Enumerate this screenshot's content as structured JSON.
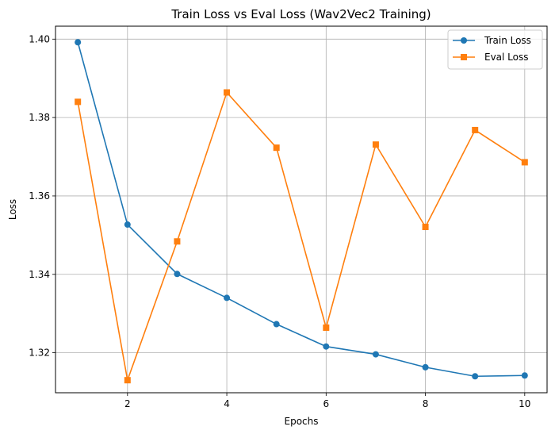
{
  "chart_data": {
    "type": "line",
    "title": "Train Loss vs Eval Loss (Wav2Vec2 Training)",
    "xlabel": "Epochs",
    "ylabel": "Loss",
    "x": [
      1,
      2,
      3,
      4,
      5,
      6,
      7,
      8,
      9,
      10
    ],
    "xticks": [
      2,
      4,
      6,
      8,
      10
    ],
    "xtick_labels": [
      "2",
      "4",
      "6",
      "8",
      "10"
    ],
    "yticks": [
      1.32,
      1.34,
      1.36,
      1.38,
      1.4
    ],
    "ytick_labels": [
      "1.32",
      "1.34",
      "1.36",
      "1.38",
      "1.40"
    ],
    "xlim": [
      0.55,
      10.45
    ],
    "ylim": [
      1.3098,
      1.4033
    ],
    "grid": true,
    "legend": "top-right",
    "series": [
      {
        "name": "Train Loss",
        "color": "#1f77b4",
        "marker": "circle",
        "values": [
          1.3992,
          1.3527,
          1.3401,
          1.334,
          1.3273,
          1.3216,
          1.3196,
          1.3163,
          1.314,
          1.3142
        ]
      },
      {
        "name": "Eval Loss",
        "color": "#ff7f0e",
        "marker": "square",
        "values": [
          1.384,
          1.313,
          1.3484,
          1.3864,
          1.3723,
          1.3264,
          1.3731,
          1.3521,
          1.3768,
          1.3686
        ]
      }
    ]
  }
}
